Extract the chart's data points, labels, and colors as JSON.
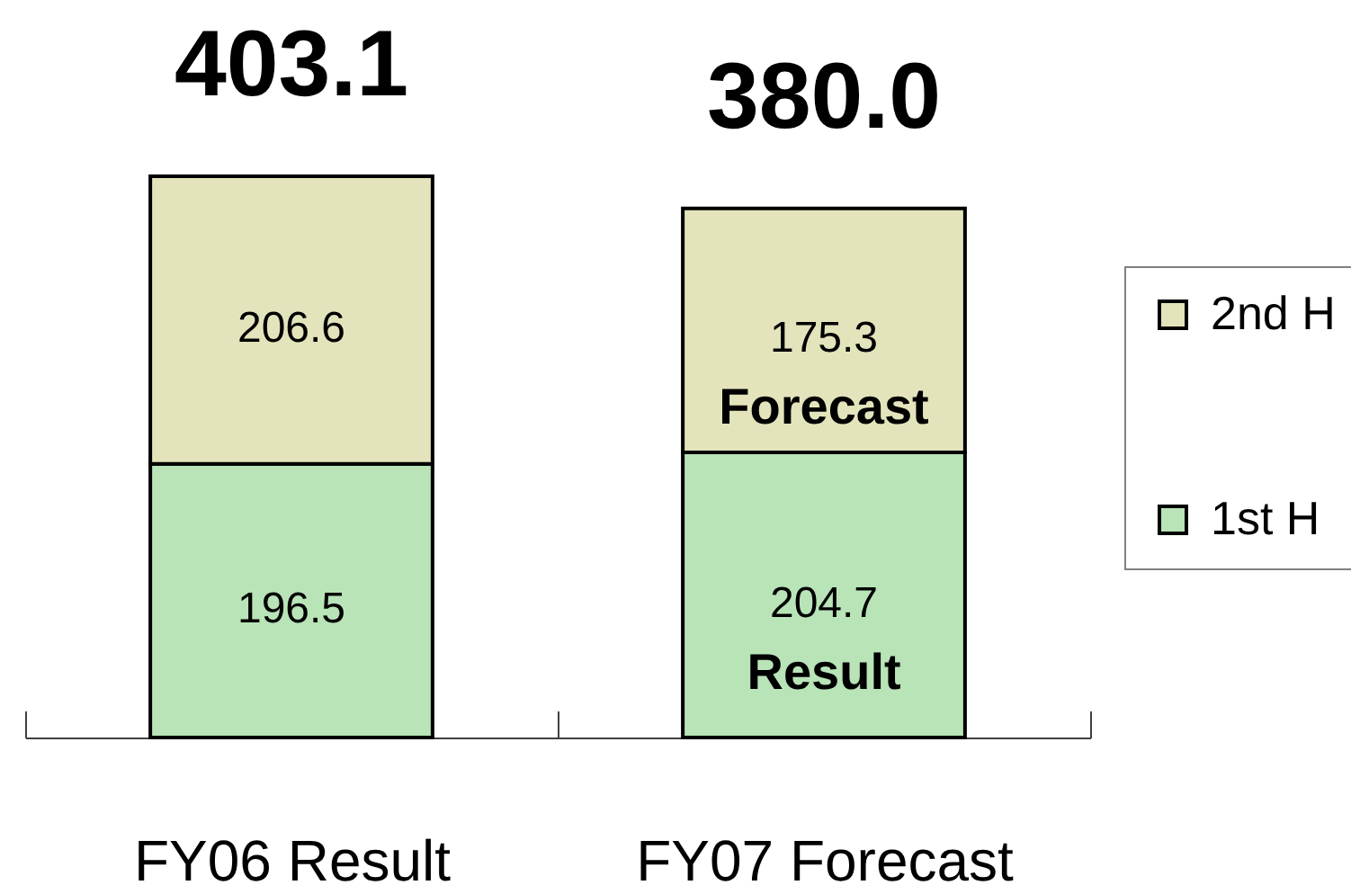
{
  "chart_data": {
    "type": "bar",
    "categories": [
      "FY06 Result",
      "FY07 Forecast"
    ],
    "series": [
      {
        "name": "1st H",
        "color": "#b8e4b8",
        "values": [
          196.5,
          204.7
        ]
      },
      {
        "name": "2nd H",
        "color": "#e4e4bc",
        "values": [
          206.6,
          175.3
        ]
      }
    ],
    "stacked": true,
    "data_labels": true,
    "totals": [
      "403.1",
      "380.0"
    ],
    "annotations": [
      "Forecast",
      "Result"
    ],
    "legend": "right"
  }
}
